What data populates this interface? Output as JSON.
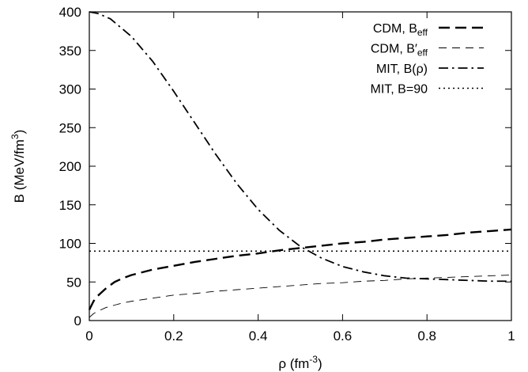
{
  "chart_data": {
    "type": "line",
    "xlabel": "ρ (fm",
    "xlabel_sup": "-3",
    "xlabel_close": ")",
    "ylabel": "B (MeV/fm",
    "ylabel_sup": "3",
    "ylabel_close": ")",
    "xlim": [
      0,
      1
    ],
    "ylim": [
      0,
      400
    ],
    "x_ticks": [
      0,
      0.2,
      0.4,
      0.6,
      0.8,
      1
    ],
    "x_tick_labels": [
      "0",
      "0.2",
      "0.4",
      "0.6",
      "0.8",
      "1"
    ],
    "y_ticks": [
      0,
      50,
      100,
      150,
      200,
      250,
      300,
      350,
      400
    ],
    "y_tick_labels": [
      "0",
      "50",
      "100",
      "150",
      "200",
      "250",
      "300",
      "350",
      "400"
    ],
    "grid": false,
    "legend_position": "top-right",
    "series": [
      {
        "name": "CDM, B",
        "name_sub": "eff",
        "style": "long-dash",
        "stroke_width": "heavy",
        "color": "#000000",
        "x": [
          0.0,
          0.01,
          0.02,
          0.04,
          0.06,
          0.08,
          0.1,
          0.15,
          0.2,
          0.25,
          0.3,
          0.35,
          0.4,
          0.45,
          0.5,
          0.55,
          0.6,
          0.65,
          0.7,
          0.75,
          0.8,
          0.85,
          0.9,
          0.95,
          1.0
        ],
        "y": [
          14,
          25,
          32,
          42,
          50,
          55,
          59,
          66,
          71,
          76,
          80,
          84,
          87,
          91,
          94,
          97,
          100,
          102,
          105,
          107,
          109,
          111,
          114,
          116,
          118
        ]
      },
      {
        "name": "CDM, B′",
        "name_sub": "eff",
        "style": "dash",
        "stroke_width": "thin",
        "color": "#000000",
        "x": [
          0.0,
          0.01,
          0.02,
          0.04,
          0.06,
          0.08,
          0.1,
          0.15,
          0.2,
          0.25,
          0.3,
          0.35,
          0.4,
          0.45,
          0.5,
          0.55,
          0.6,
          0.65,
          0.7,
          0.75,
          0.8,
          0.85,
          0.9,
          0.95,
          1.0
        ],
        "y": [
          4,
          9,
          12,
          17,
          20,
          23,
          25,
          29,
          33,
          35,
          38,
          40,
          42,
          44,
          46,
          48,
          49,
          51,
          52,
          54,
          55,
          56,
          57,
          58,
          59
        ]
      },
      {
        "name": "MIT, B(ρ)",
        "style": "dash-dot",
        "stroke_width": "heavy",
        "color": "#000000",
        "x": [
          0.0,
          0.02,
          0.05,
          0.1,
          0.15,
          0.2,
          0.25,
          0.3,
          0.35,
          0.4,
          0.45,
          0.5,
          0.55,
          0.6,
          0.65,
          0.7,
          0.75,
          0.8,
          0.85,
          0.9,
          0.95,
          1.0
        ],
        "y": [
          400,
          398,
          391,
          368,
          336,
          297,
          256,
          215,
          177,
          144,
          117,
          96,
          81,
          70,
          63,
          58,
          55,
          54,
          53,
          52,
          51,
          51
        ]
      },
      {
        "name": "MIT, B=90",
        "style": "dot",
        "stroke_width": "normal",
        "color": "#000000",
        "x": [
          0.0,
          1.0
        ],
        "y": [
          90,
          90
        ]
      }
    ]
  }
}
